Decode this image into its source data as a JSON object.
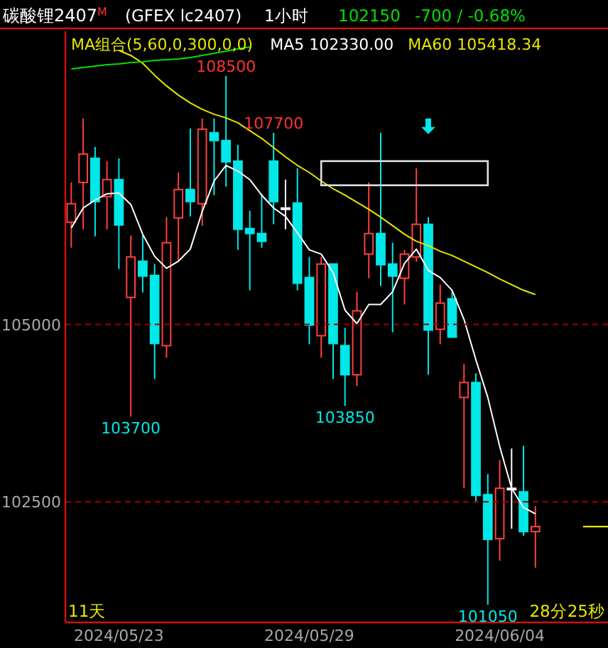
{
  "chart_data": {
    "type": "candlestick",
    "title": "碳酸锂2407$^{M}$",
    "subtitle": "(GFEX lc2407)",
    "categories": [
      null,
      null,
      null,
      null,
      "2024/05/23",
      null,
      null,
      null,
      null,
      null,
      null,
      null,
      null,
      null,
      null,
      null,
      null,
      null,
      null,
      null,
      "2024/05/29",
      null,
      null,
      null,
      null,
      null,
      null,
      null,
      null,
      null,
      null,
      null,
      null,
      null,
      null,
      null,
      "2024/06/04",
      null,
      null,
      null
    ],
    "ohlc": [
      [
        106440,
        107000,
        106080,
        106700
      ],
      [
        107000,
        107900,
        106340,
        107400
      ],
      [
        107340,
        107500,
        106240,
        106730
      ],
      [
        106800,
        107300,
        106340,
        107040
      ],
      [
        107040,
        107340,
        105780,
        106400
      ],
      [
        105380,
        106250,
        103700,
        105950
      ],
      [
        105890,
        106250,
        105450,
        105680
      ],
      [
        105690,
        105850,
        104230,
        104730
      ],
      [
        104700,
        106510,
        104530,
        106150
      ],
      [
        106500,
        107140,
        105890,
        106900
      ],
      [
        106900,
        107760,
        106520,
        106730
      ],
      [
        106700,
        107900,
        106390,
        107750
      ],
      [
        107700,
        107900,
        106820,
        107590
      ],
      [
        107590,
        108500,
        106940,
        107290
      ],
      [
        107300,
        107530,
        106050,
        106340
      ],
      [
        106350,
        106600,
        105480,
        106280
      ],
      [
        106280,
        106840,
        106080,
        106170
      ],
      [
        107300,
        107700,
        106410,
        106730
      ],
      [
        106640,
        107040,
        106340,
        106640
      ],
      [
        106710,
        107200,
        105480,
        105580
      ],
      [
        105660,
        105950,
        104720,
        104990
      ],
      [
        104840,
        105950,
        104530,
        105850
      ],
      [
        105850,
        105850,
        104230,
        104730
      ],
      [
        104700,
        104950,
        103850,
        104290
      ],
      [
        104290,
        105460,
        104130,
        105190
      ],
      [
        105990,
        107000,
        105650,
        106280
      ],
      [
        106280,
        107700,
        105540,
        105840
      ],
      [
        105850,
        106150,
        104890,
        105680
      ],
      [
        105650,
        106050,
        105280,
        105990
      ],
      [
        105950,
        107200,
        105880,
        106410
      ],
      [
        106410,
        106510,
        104290,
        104920
      ],
      [
        104930,
        105560,
        104720,
        105300
      ],
      [
        105360,
        105480,
        104820,
        104820
      ],
      [
        103970,
        104440,
        102690,
        104180
      ],
      [
        104180,
        104310,
        102490,
        102590
      ],
      [
        102600,
        102890,
        101050,
        101970
      ],
      [
        101980,
        103090,
        101670,
        102690
      ],
      [
        102690,
        103250,
        102120,
        102690
      ],
      [
        102640,
        103290,
        102020,
        102080
      ],
      [
        102080,
        102440,
        101570,
        102150
      ]
    ],
    "colors": [
      "#ff4040",
      "#ff4040",
      "#00e8e8",
      "#ff4040",
      "#00e8e8",
      "#ff4040",
      "#00e8e8",
      "#00e8e8",
      "#ff4040",
      "#ff4040",
      "#00e8e8",
      "#ff4040",
      "#00e8e8",
      "#00e8e8",
      "#00e8e8",
      "#00e8e8",
      "#00e8e8",
      "#00e8e8",
      "#ffffff",
      "#00e8e8",
      "#00e8e8",
      "#ff4040",
      "#00e8e8",
      "#00e8e8",
      "#ff4040",
      "#ff4040",
      "#00e8e8",
      "#00e8e8",
      "#ff4040",
      "#ff4040",
      "#00e8e8",
      "#ff4040",
      "#00e8e8",
      "#ff4040",
      "#00e8e8",
      "#00e8e8",
      "#ff4040",
      "#ffffff",
      "#00e8e8",
      "#ff4040"
    ],
    "series": [
      {
        "type": "line",
        "name": "MA5 102330.00",
        "color": "#ffffff",
        "values": [
          106360,
          106640,
          106750,
          106840,
          106850,
          106690,
          106270,
          105960,
          105790,
          105890,
          106060,
          106590,
          107020,
          107240,
          107160,
          107040,
          106820,
          106640,
          106520,
          106290,
          106050,
          105990,
          105730,
          105200,
          105010,
          105280,
          105280,
          105460,
          105860,
          106060,
          105760,
          105660,
          105480,
          105070,
          104500,
          103970,
          103280,
          102690,
          102420,
          102330
        ]
      },
      {
        "type": "line",
        "name": "MA60 105418.34",
        "color": "#e6e600",
        "values": [
          null,
          null,
          null,
          null,
          108860,
          108790,
          108680,
          108510,
          108360,
          108230,
          108120,
          108030,
          107960,
          107910,
          107840,
          107730,
          107620,
          107490,
          107360,
          107240,
          107140,
          107020,
          106910,
          106820,
          106720,
          106620,
          106510,
          106390,
          106270,
          106170,
          106110,
          106030,
          105970,
          105890,
          105810,
          105730,
          105640,
          105560,
          105480,
          105420
        ]
      },
      {
        "type": "line",
        "color": "#00e000",
        "values": [
          108600,
          108620,
          108640,
          108660,
          108670,
          108690,
          108700,
          108720,
          108730,
          108740,
          108760,
          108790,
          108820,
          108850,
          108880,
          108910,
          null,
          null,
          null,
          null,
          null,
          null,
          null,
          null,
          null,
          null,
          null,
          null,
          null,
          null,
          null,
          null,
          null,
          null,
          null,
          null,
          null,
          null,
          null,
          null
        ]
      }
    ],
    "legend_title": "MA组合(5,60,0,300,0,0)",
    "legend": "top",
    "ylim": [
      100800,
      109130
    ],
    "yticks": [
      105000,
      102500
    ],
    "grid": "y",
    "annotations": [
      "1小时",
      "102150",
      "-700 / -0.68%",
      "11天",
      "28分25秒",
      {
        "text": "108500",
        "y": 108500
      },
      {
        "text": "107700",
        "y": 107700
      },
      {
        "text": "103700",
        "y": 103700
      },
      {
        "text": "103850",
        "y": 103850
      },
      {
        "text": "101050",
        "y": 101050
      }
    ]
  }
}
